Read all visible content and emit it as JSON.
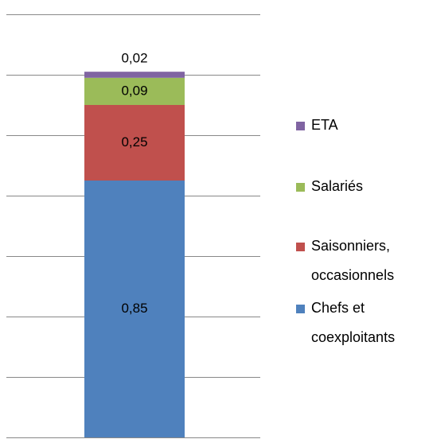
{
  "chart_data": {
    "type": "stacked_bar",
    "categories": [
      null
    ],
    "series": [
      {
        "name": "Chefs et coexploitants",
        "color": "#4f81bd",
        "values": [
          0.85
        ],
        "value_labels": [
          "0,85"
        ]
      },
      {
        "name": "Saisonniers, occasionnels",
        "color": "#c0504d",
        "values": [
          0.25
        ],
        "value_labels": [
          "0,25"
        ]
      },
      {
        "name": "Salariés",
        "color": "#9bbb59",
        "values": [
          0.09
        ],
        "value_labels": [
          "0,09"
        ]
      },
      {
        "name": "ETA",
        "color": "#8064a2",
        "values": [
          0.02
        ],
        "value_labels": [
          "0,02"
        ]
      }
    ],
    "ylim": [
      0,
      1.4
    ],
    "yticks": [
      0,
      0.2,
      0.4,
      0.6,
      0.8,
      1.0,
      1.2,
      1.4
    ],
    "grid": true,
    "legend": "right"
  }
}
